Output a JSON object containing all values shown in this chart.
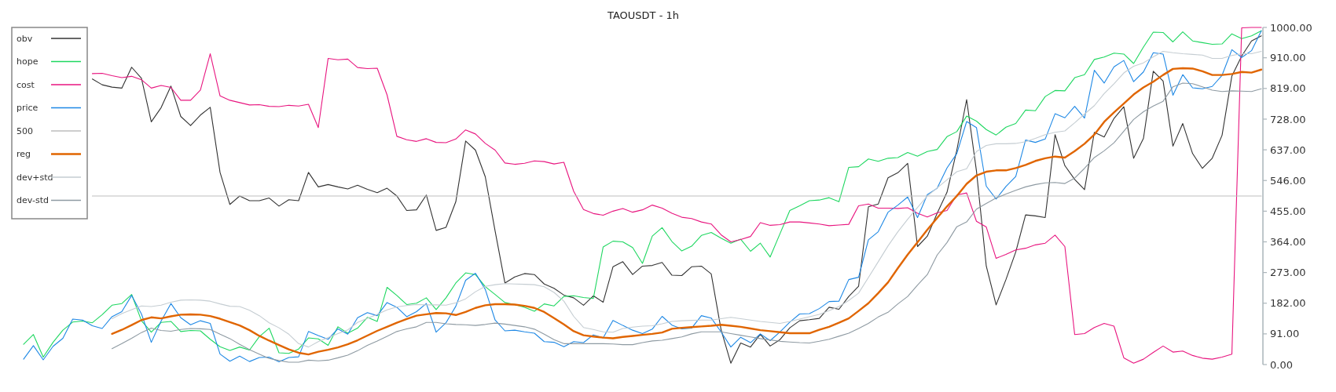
{
  "chart_data": {
    "type": "line",
    "title": "TAOUSDT - 1h",
    "categories": [
      null,
      null,
      null,
      null,
      null,
      null,
      null,
      null,
      null,
      null,
      null,
      null,
      null,
      null,
      null,
      null,
      null,
      null,
      null,
      null,
      null,
      null,
      null,
      null,
      null,
      null,
      null,
      null,
      null,
      null,
      null,
      null,
      null,
      null,
      null,
      null,
      null,
      null,
      null,
      null,
      null,
      null,
      null,
      null,
      null,
      null,
      null,
      null,
      null,
      null,
      null,
      null,
      null,
      null,
      null,
      null,
      null,
      null,
      null,
      null,
      null,
      null,
      null,
      null,
      null,
      null,
      null,
      null,
      null,
      null,
      null,
      null,
      null,
      null,
      null,
      null,
      null,
      null,
      null,
      null,
      null,
      null,
      null,
      null,
      null,
      null,
      null,
      null,
      null,
      null,
      null,
      null,
      null,
      null,
      null,
      null,
      null,
      null,
      null,
      null,
      null,
      null,
      null,
      null,
      null,
      null,
      null,
      null,
      null,
      null,
      null,
      null,
      null,
      null,
      null,
      null,
      null,
      null,
      null,
      null,
      null,
      null,
      null,
      null,
      null,
      null,
      null
    ],
    "ylim": [
      0,
      1000
    ],
    "yticks": [
      {
        "value": 0,
        "label": "0.00"
      },
      {
        "value": 91,
        "label": "91.00"
      },
      {
        "value": 182,
        "label": "182.00"
      },
      {
        "value": 273,
        "label": "273.00"
      },
      {
        "value": 364,
        "label": "364.00"
      },
      {
        "value": 455,
        "label": "455.00"
      },
      {
        "value": 546,
        "label": "546.00"
      },
      {
        "value": 637,
        "label": "637.00"
      },
      {
        "value": 728,
        "label": "728.00"
      },
      {
        "value": 819,
        "label": "819.00"
      },
      {
        "value": 910,
        "label": "910.00"
      },
      {
        "value": 1000,
        "label": "1000.00"
      }
    ],
    "tick_labels": "y",
    "grid": false,
    "legend": "top left",
    "marker": "none",
    "line_style": "solid",
    "series": [
      {
        "name": "obv",
        "color": "#333333",
        "values": [
          null,
          null,
          null,
          null,
          null,
          null,
          null,
          847,
          830,
          823,
          820,
          882,
          849,
          720,
          762,
          826,
          736,
          709,
          740,
          763,
          570,
          475,
          500,
          486,
          486,
          494,
          470,
          489,
          486,
          570,
          527,
          534,
          527,
          521,
          532,
          520,
          510,
          523,
          500,
          457,
          459,
          503,
          398,
          407,
          483,
          663,
          636,
          557,
          396,
          242,
          260,
          270,
          267,
          239,
          226,
          206,
          198,
          176,
          204,
          185,
          290,
          305,
          267,
          292,
          294,
          303,
          265,
          264,
          290,
          292,
          269,
          104,
          4,
          64,
          52,
          90,
          55,
          74,
          109,
          130,
          133,
          137,
          170,
          164,
          202,
          232,
          468,
          476,
          554,
          569,
          597,
          350,
          381,
          449,
          511,
          636,
          786,
          574,
          292,
          177,
          252,
          334,
          444,
          441,
          436,
          682,
          590,
          549,
          519,
          689,
          675,
          730,
          765,
          612,
          671,
          870,
          841,
          648,
          715,
          626,
          582,
          612,
          680,
          856,
          915,
          960,
          975
        ]
      },
      {
        "name": "hope",
        "color": "#1ed760",
        "values": [
          60,
          89,
          22,
          66,
          102,
          126,
          129,
          124,
          148,
          176,
          181,
          208,
          130,
          96,
          125,
          128,
          98,
          101,
          100,
          75,
          53,
          42,
          52,
          43,
          83,
          108,
          35,
          33,
          46,
          79,
          76,
          57,
          112,
          93,
          108,
          140,
          128,
          229,
          205,
          178,
          182,
          198,
          163,
          198,
          242,
          272,
          267,
          231,
          208,
          184,
          178,
          170,
          158,
          180,
          174,
          202,
          204,
          199,
          196,
          349,
          366,
          364,
          347,
          300,
          381,
          406,
          365,
          337,
          351,
          383,
          392,
          375,
          360,
          372,
          336,
          360,
          319,
          388,
          457,
          471,
          486,
          488,
          495,
          483,
          585,
          587,
          610,
          603,
          612,
          614,
          629,
          618,
          632,
          638,
          676,
          691,
          737,
          722,
          697,
          681,
          704,
          715,
          755,
          753,
          795,
          813,
          812,
          851,
          860,
          905,
          912,
          924,
          921,
          893,
          942,
          986,
          985,
          957,
          987,
          960,
          955,
          950,
          951,
          981,
          967,
          975,
          990
        ]
      },
      {
        "name": "cost",
        "color": "#e8157f",
        "values": [
          null,
          null,
          null,
          null,
          null,
          null,
          null,
          863,
          864,
          857,
          851,
          855,
          845,
          820,
          828,
          822,
          784,
          784,
          814,
          922,
          797,
          784,
          777,
          770,
          771,
          766,
          765,
          769,
          767,
          772,
          703,
          908,
          904,
          906,
          881,
          878,
          879,
          800,
          677,
          667,
          662,
          670,
          659,
          658,
          669,
          696,
          684,
          656,
          636,
          598,
          594,
          597,
          604,
          602,
          595,
          600,
          514,
          460,
          448,
          443,
          455,
          463,
          452,
          459,
          473,
          464,
          449,
          437,
          433,
          423,
          417,
          385,
          364,
          371,
          380,
          421,
          413,
          415,
          423,
          423,
          420,
          417,
          412,
          414,
          416,
          471,
          476,
          464,
          464,
          463,
          465,
          449,
          438,
          450,
          457,
          503,
          509,
          425,
          408,
          315,
          327,
          340,
          345,
          355,
          360,
          384,
          350,
          89,
          92,
          110,
          122,
          114,
          20,
          4,
          16,
          36,
          55,
          37,
          40,
          27,
          19,
          16,
          22,
          31,
          999,
          1000,
          1000
        ]
      },
      {
        "name": "price",
        "color": "#1e88e5",
        "values": [
          16,
          56,
          14,
          54,
          78,
          135,
          132,
          115,
          107,
          142,
          157,
          205,
          150,
          66,
          129,
          181,
          139,
          118,
          130,
          122,
          31,
          10,
          25,
          9,
          21,
          22,
          8,
          21,
          23,
          98,
          86,
          75,
          106,
          90,
          139,
          154,
          145,
          184,
          170,
          142,
          157,
          181,
          96,
          124,
          173,
          250,
          271,
          223,
          132,
          100,
          102,
          97,
          93,
          68,
          66,
          53,
          68,
          65,
          88,
          79,
          131,
          116,
          102,
          92,
          105,
          143,
          117,
          106,
          108,
          145,
          138,
          97,
          52,
          81,
          65,
          91,
          71,
          97,
          126,
          150,
          151,
          166,
          187,
          188,
          252,
          259,
          370,
          394,
          452,
          473,
          497,
          436,
          504,
          523,
          583,
          626,
          721,
          703,
          529,
          491,
          528,
          558,
          666,
          659,
          669,
          744,
          732,
          766,
          731,
          873,
          835,
          883,
          902,
          839,
          868,
          925,
          921,
          799,
          860,
          821,
          818,
          825,
          858,
          934,
          911,
          931,
          990
        ]
      },
      {
        "name": "500",
        "color": "#bdbdbd",
        "values": [
          null,
          null,
          null,
          null,
          null,
          null,
          null,
          500,
          500,
          500,
          500,
          500,
          500,
          500,
          500,
          500,
          500,
          500,
          500,
          500,
          500,
          500,
          500,
          500,
          500,
          500,
          500,
          500,
          500,
          500,
          500,
          500,
          500,
          500,
          500,
          500,
          500,
          500,
          500,
          500,
          500,
          500,
          500,
          500,
          500,
          500,
          500,
          500,
          500,
          500,
          500,
          500,
          500,
          500,
          500,
          500,
          500,
          500,
          500,
          500,
          500,
          500,
          500,
          500,
          500,
          500,
          500,
          500,
          500,
          500,
          500,
          500,
          500,
          500,
          500,
          500,
          500,
          500,
          500,
          500,
          500,
          500,
          500,
          500,
          500,
          500,
          500,
          500,
          500,
          500,
          500,
          500,
          500,
          500,
          500,
          500,
          500,
          500,
          500,
          500,
          500,
          500,
          500,
          500,
          500,
          500,
          500,
          500,
          500,
          500,
          500,
          500,
          500,
          500,
          500,
          500,
          500,
          500,
          500,
          500,
          500,
          500,
          500,
          500,
          500,
          500,
          500
        ]
      },
      {
        "name": "reg",
        "color": "#e06500",
        "values": [
          null,
          null,
          null,
          null,
          null,
          null,
          null,
          null,
          null,
          91,
          103,
          117,
          132,
          140,
          137,
          143,
          148,
          149,
          148,
          144,
          136,
          126,
          116,
          102,
          85,
          71,
          58,
          45,
          35,
          30,
          38,
          44,
          51,
          60,
          72,
          86,
          100,
          112,
          124,
          135,
          145,
          149,
          153,
          152,
          147,
          156,
          168,
          176,
          179,
          179,
          178,
          174,
          168,
          156,
          138,
          119,
          99,
          87,
          83,
          80,
          78,
          82,
          85,
          88,
          91,
          95,
          106,
          109,
          111,
          113,
          115,
          118,
          115,
          112,
          107,
          102,
          99,
          96,
          93,
          93,
          93,
          103,
          112,
          124,
          137,
          159,
          182,
          212,
          244,
          286,
          326,
          363,
          400,
          435,
          469,
          500,
          536,
          561,
          572,
          576,
          576,
          583,
          592,
          604,
          612,
          617,
          614,
          633,
          655,
          682,
          720,
          748,
          774,
          801,
          822,
          839,
          859,
          877,
          879,
          878,
          870,
          859,
          859,
          862,
          868,
          866,
          875
        ]
      },
      {
        "name": "dev+std",
        "color": "#c5cdd2",
        "values": [
          null,
          null,
          null,
          null,
          null,
          null,
          null,
          null,
          null,
          136,
          151,
          163,
          174,
          172,
          176,
          185,
          191,
          192,
          191,
          188,
          180,
          173,
          172,
          161,
          145,
          124,
          109,
          90,
          62,
          52,
          68,
          80,
          92,
          103,
          125,
          137,
          149,
          162,
          171,
          175,
          178,
          177,
          177,
          176,
          183,
          195,
          216,
          232,
          237,
          240,
          239,
          238,
          237,
          231,
          214,
          188,
          143,
          110,
          104,
          97,
          96,
          107,
          111,
          114,
          115,
          121,
          128,
          130,
          131,
          132,
          132,
          136,
          140,
          136,
          132,
          128,
          125,
          122,
          128,
          135,
          142,
          149,
          160,
          172,
          190,
          212,
          258,
          305,
          352,
          394,
          431,
          466,
          500,
          524,
          548,
          572,
          581,
          632,
          650,
          655,
          655,
          656,
          661,
          671,
          682,
          689,
          693,
          717,
          743,
          768,
          804,
          833,
          865,
          885,
          895,
          913,
          929,
          925,
          922,
          920,
          918,
          908,
          908,
          917,
          922,
          922,
          929
        ]
      },
      {
        "name": "dev-std",
        "color": "#8e9aa2",
        "values": [
          null,
          null,
          null,
          null,
          null,
          null,
          null,
          null,
          null,
          47,
          62,
          78,
          95,
          108,
          101,
          99,
          104,
          107,
          106,
          104,
          90,
          77,
          60,
          44,
          31,
          18,
          12,
          7,
          7,
          13,
          11,
          13,
          20,
          28,
          41,
          57,
          70,
          84,
          98,
          106,
          112,
          125,
          125,
          121,
          119,
          118,
          116,
          119,
          123,
          120,
          116,
          112,
          105,
          90,
          74,
          62,
          62,
          62,
          62,
          62,
          61,
          59,
          59,
          65,
          70,
          72,
          77,
          82,
          91,
          97,
          97,
          97,
          92,
          87,
          82,
          77,
          73,
          69,
          67,
          65,
          64,
          69,
          75,
          84,
          93,
          107,
          122,
          141,
          155,
          180,
          202,
          236,
          267,
          325,
          362,
          409,
          423,
          461,
          478,
          494,
          506,
          517,
          527,
          534,
          539,
          540,
          537,
          553,
          582,
          614,
          634,
          658,
          692,
          727,
          750,
          767,
          781,
          824,
          835,
          833,
          824,
          814,
          810,
          812,
          811,
          810,
          818
        ]
      }
    ]
  }
}
